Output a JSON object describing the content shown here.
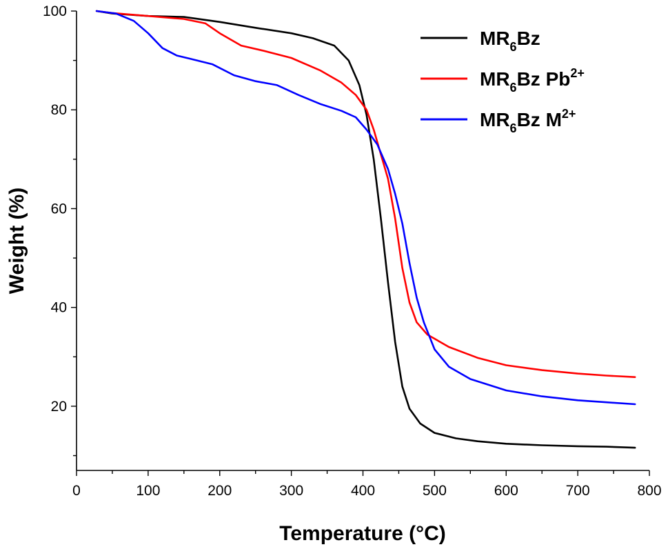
{
  "chart_data": {
    "type": "line",
    "title": "",
    "xlabel": "Temperature (°C)",
    "ylabel": "Weight (%)",
    "xlim": [
      0,
      800
    ],
    "ylim": [
      7,
      100
    ],
    "x_ticks": [
      0,
      100,
      200,
      300,
      400,
      500,
      600,
      700,
      800
    ],
    "x_tick_labels": [
      "0",
      "100",
      "200",
      "300",
      "400",
      "500",
      "600",
      "700",
      "800"
    ],
    "y_ticks": [
      20,
      40,
      60,
      80,
      100
    ],
    "y_tick_labels": [
      "20",
      "40",
      "60",
      "80",
      "100"
    ],
    "grid": false,
    "legend_position": "top-right",
    "series": [
      {
        "name": "MR6Bz",
        "legend": {
          "base": "MR",
          "sub": "6",
          "rest": "Bz",
          "sup": ""
        },
        "color": "#000000",
        "points": [
          [
            28,
            100
          ],
          [
            50,
            99.5
          ],
          [
            100,
            99
          ],
          [
            150,
            98.8
          ],
          [
            200,
            97.8
          ],
          [
            250,
            96.6
          ],
          [
            300,
            95.5
          ],
          [
            330,
            94.5
          ],
          [
            360,
            93
          ],
          [
            380,
            90
          ],
          [
            395,
            85
          ],
          [
            405,
            79
          ],
          [
            415,
            70
          ],
          [
            425,
            58
          ],
          [
            435,
            45
          ],
          [
            445,
            33
          ],
          [
            455,
            24
          ],
          [
            465,
            19.5
          ],
          [
            480,
            16.5
          ],
          [
            500,
            14.6
          ],
          [
            530,
            13.5
          ],
          [
            560,
            12.9
          ],
          [
            600,
            12.4
          ],
          [
            650,
            12.1
          ],
          [
            700,
            11.9
          ],
          [
            740,
            11.8
          ],
          [
            780,
            11.6
          ]
        ]
      },
      {
        "name": "MR6Bz Pb2+",
        "legend": {
          "base": "MR",
          "sub": "6",
          "rest": "Bz Pb",
          "sup": "2+"
        },
        "color": "#ff0000",
        "points": [
          [
            28,
            100
          ],
          [
            50,
            99.6
          ],
          [
            100,
            99
          ],
          [
            150,
            98.4
          ],
          [
            180,
            97.5
          ],
          [
            200,
            95.5
          ],
          [
            230,
            93
          ],
          [
            260,
            92
          ],
          [
            300,
            90.5
          ],
          [
            340,
            88
          ],
          [
            370,
            85.5
          ],
          [
            390,
            83
          ],
          [
            405,
            80
          ],
          [
            415,
            76
          ],
          [
            425,
            71
          ],
          [
            435,
            66
          ],
          [
            445,
            58
          ],
          [
            455,
            48
          ],
          [
            465,
            41
          ],
          [
            475,
            37
          ],
          [
            490,
            34.5
          ],
          [
            520,
            32
          ],
          [
            560,
            29.8
          ],
          [
            600,
            28.3
          ],
          [
            650,
            27.3
          ],
          [
            700,
            26.6
          ],
          [
            740,
            26.2
          ],
          [
            780,
            25.9
          ]
        ]
      },
      {
        "name": "MR6Bz M2+",
        "legend": {
          "base": "MR",
          "sub": "6",
          "rest": "Bz M",
          "sup": "2+"
        },
        "color": "#0000ff",
        "points": [
          [
            28,
            100
          ],
          [
            55,
            99.5
          ],
          [
            80,
            98
          ],
          [
            100,
            95.5
          ],
          [
            120,
            92.5
          ],
          [
            140,
            91
          ],
          [
            160,
            90.3
          ],
          [
            190,
            89.2
          ],
          [
            220,
            87
          ],
          [
            250,
            85.8
          ],
          [
            280,
            85
          ],
          [
            310,
            83
          ],
          [
            340,
            81.2
          ],
          [
            370,
            79.8
          ],
          [
            390,
            78.5
          ],
          [
            405,
            76
          ],
          [
            420,
            73
          ],
          [
            435,
            68
          ],
          [
            445,
            63
          ],
          [
            455,
            57
          ],
          [
            465,
            49
          ],
          [
            475,
            42
          ],
          [
            485,
            37
          ],
          [
            500,
            31.5
          ],
          [
            520,
            28
          ],
          [
            550,
            25.5
          ],
          [
            600,
            23.2
          ],
          [
            650,
            22
          ],
          [
            700,
            21.2
          ],
          [
            740,
            20.8
          ],
          [
            780,
            20.4
          ]
        ]
      }
    ]
  }
}
